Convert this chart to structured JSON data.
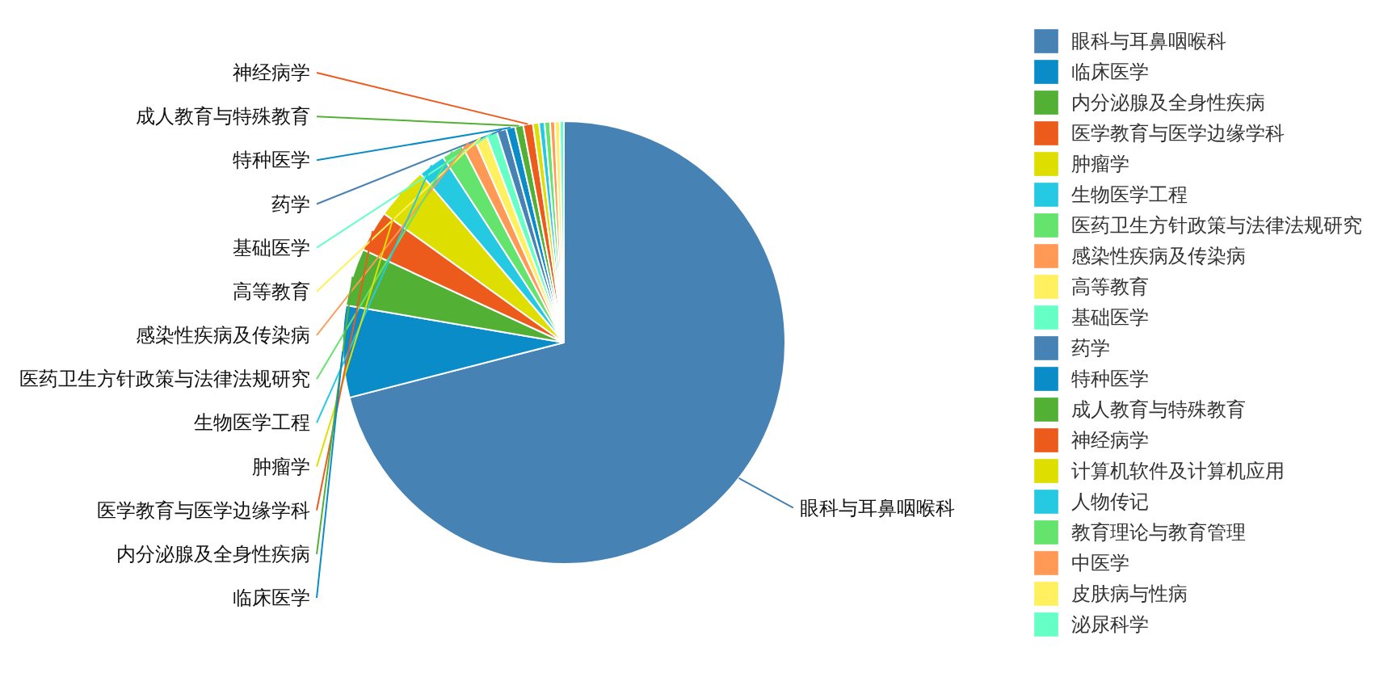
{
  "chart_data": {
    "type": "pie",
    "legend": "right",
    "categories": [
      "眼科与耳鼻咽喉科",
      "临床医学",
      "内分泌腺及全身性疾病",
      "医学教育与医学边缘学科",
      "肿瘤学",
      "生物医学工程",
      "医药卫生方针政策与法律法规研究",
      "感染性疾病及传染病",
      "高等教育",
      "基础医学",
      "药学",
      "特种医学",
      "成人教育与特殊教育",
      "神经病学",
      "计算机软件及计算机应用",
      "人物传记",
      "教育理论与教育管理",
      "中医学",
      "皮肤病与性病",
      "泌尿科学"
    ],
    "values": [
      71,
      6.7,
      4.2,
      3.0,
      3.9,
      2.0,
      1.6,
      1.0,
      0.9,
      0.8,
      0.7,
      0.65,
      0.6,
      0.7,
      0.45,
      0.4,
      0.4,
      0.35,
      0.35,
      0.3
    ],
    "colors": [
      "#4682b4",
      "#0a8cc8",
      "#52b135",
      "#ed5b1c",
      "#dede00",
      "#25c9e1",
      "#64e36d",
      "#ff9955",
      "#fff060",
      "#66ffc6",
      "#4682b4",
      "#0a8cc8",
      "#52b135",
      "#ed5b1c",
      "#dede00",
      "#25c9e1",
      "#64e36d",
      "#ff9955",
      "#fff060",
      "#66ffc6"
    ]
  }
}
